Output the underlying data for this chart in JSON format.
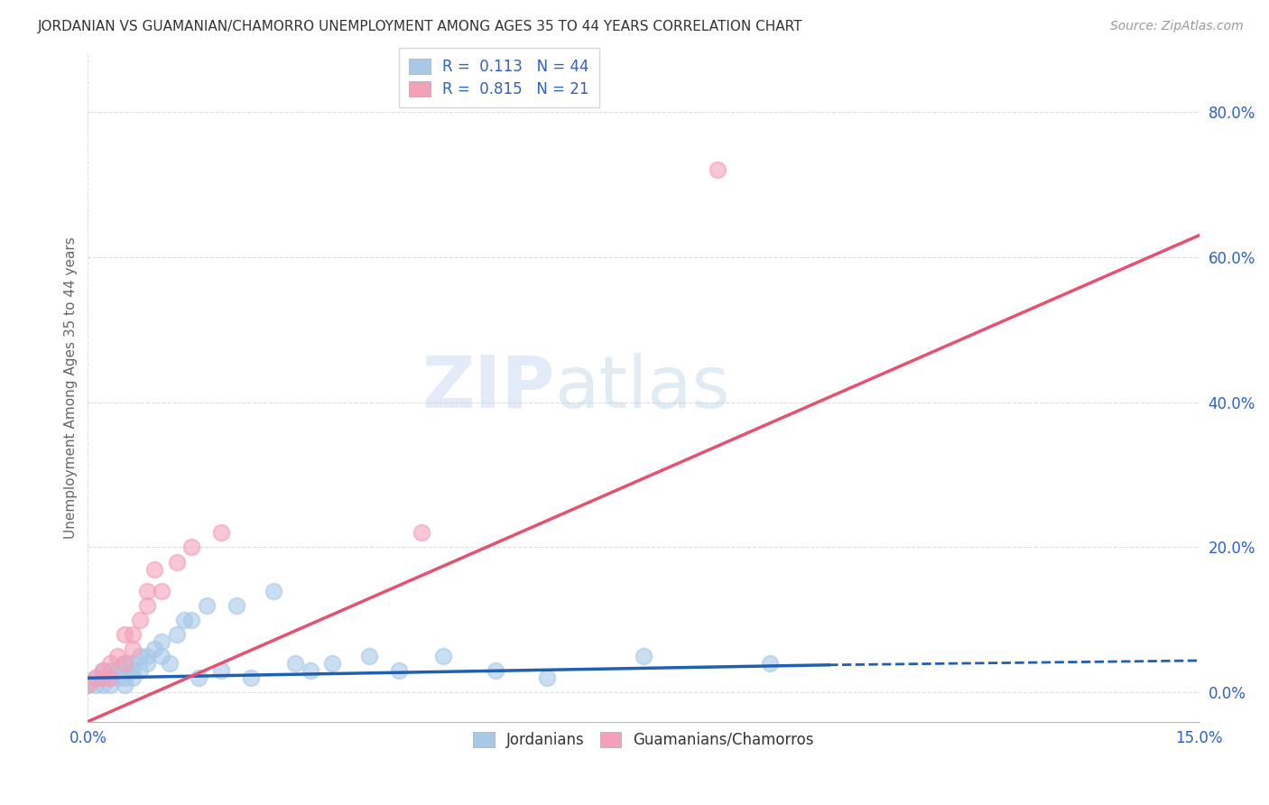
{
  "title": "JORDANIAN VS GUAMANIAN/CHAMORRO UNEMPLOYMENT AMONG AGES 35 TO 44 YEARS CORRELATION CHART",
  "source": "Source: ZipAtlas.com",
  "ylabel": "Unemployment Among Ages 35 to 44 years",
  "ytick_labels": [
    "0.0%",
    "20.0%",
    "40.0%",
    "60.0%",
    "80.0%"
  ],
  "ytick_values": [
    0.0,
    0.2,
    0.4,
    0.6,
    0.8
  ],
  "xlim": [
    0.0,
    0.15
  ],
  "ylim": [
    -0.04,
    0.88
  ],
  "x_tick_labels": [
    "0.0%",
    "15.0%"
  ],
  "x_tick_positions": [
    0.0,
    0.15
  ],
  "legend_labels": [
    "Jordanians",
    "Guamanians/Chamorros"
  ],
  "R_jordanian": 0.113,
  "N_jordanian": 44,
  "R_guamanian": 0.815,
  "N_guamanian": 21,
  "jordanian_color": "#A8C8E8",
  "guamanian_color": "#F4A0B8",
  "trendline_jordanian_solid_color": "#2060B0",
  "trendline_jordanian_dashed_color": "#2060B0",
  "trendline_guamanian_color": "#E85070",
  "axis_label_color": "#3060C0",
  "grid_color": "#DDDDDD",
  "jordanian_x": [
    0.0,
    0.001,
    0.001,
    0.002,
    0.002,
    0.002,
    0.003,
    0.003,
    0.003,
    0.004,
    0.004,
    0.005,
    0.005,
    0.005,
    0.006,
    0.006,
    0.006,
    0.007,
    0.007,
    0.008,
    0.008,
    0.009,
    0.01,
    0.01,
    0.011,
    0.012,
    0.013,
    0.014,
    0.015,
    0.016,
    0.018,
    0.02,
    0.022,
    0.025,
    0.028,
    0.03,
    0.033,
    0.038,
    0.042,
    0.048,
    0.055,
    0.062,
    0.075,
    0.092
  ],
  "jordanian_y": [
    0.01,
    0.02,
    0.01,
    0.03,
    0.01,
    0.02,
    0.03,
    0.02,
    0.01,
    0.03,
    0.02,
    0.04,
    0.02,
    0.01,
    0.04,
    0.03,
    0.02,
    0.05,
    0.03,
    0.05,
    0.04,
    0.06,
    0.07,
    0.05,
    0.04,
    0.08,
    0.1,
    0.1,
    0.02,
    0.12,
    0.03,
    0.12,
    0.02,
    0.14,
    0.04,
    0.03,
    0.04,
    0.05,
    0.03,
    0.05,
    0.03,
    0.02,
    0.05,
    0.04
  ],
  "guamanian_x": [
    0.0,
    0.001,
    0.002,
    0.002,
    0.003,
    0.003,
    0.004,
    0.005,
    0.005,
    0.006,
    0.006,
    0.007,
    0.008,
    0.008,
    0.009,
    0.01,
    0.012,
    0.014,
    0.018,
    0.045,
    0.085
  ],
  "guamanian_y": [
    0.01,
    0.02,
    0.03,
    0.02,
    0.04,
    0.02,
    0.05,
    0.08,
    0.04,
    0.08,
    0.06,
    0.1,
    0.14,
    0.12,
    0.17,
    0.14,
    0.18,
    0.2,
    0.22,
    0.22,
    0.72
  ],
  "guam_trendline_x0": 0.0,
  "guam_trendline_y0": -0.04,
  "guam_trendline_x1": 0.15,
  "guam_trendline_y1": 0.63,
  "jord_trendline_x0": 0.0,
  "jord_trendline_y0": 0.02,
  "jord_trendline_x1": 0.1,
  "jord_trendline_y1": 0.038,
  "jord_trendline_dash_x0": 0.1,
  "jord_trendline_dash_y0": 0.038,
  "jord_trendline_dash_x1": 0.15,
  "jord_trendline_dash_y1": 0.044
}
